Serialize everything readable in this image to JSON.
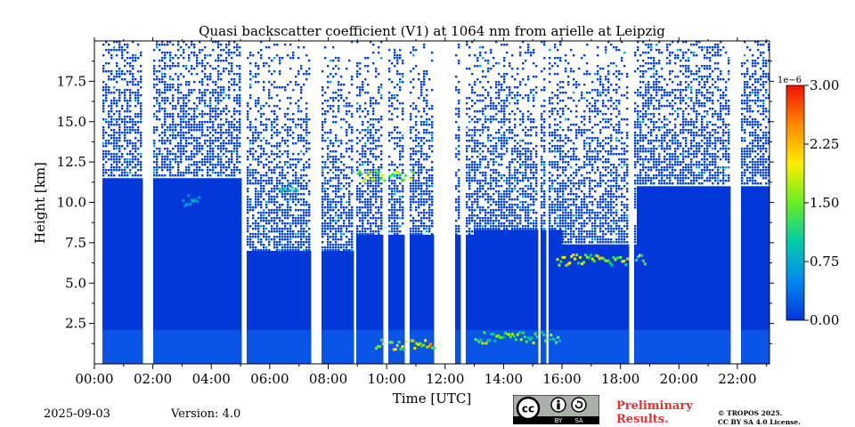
{
  "chart_data": {
    "type": "heatmap",
    "title": "Quasi backscatter coefficient (V1) at 1064 nm from arielle at Leipzig",
    "xlabel": "Time [UTC]",
    "ylabel": "Height [km]",
    "xlim": [
      0,
      23.1
    ],
    "ylim": [
      0,
      20
    ],
    "x_ticks": [
      0,
      2,
      4,
      6,
      8,
      10,
      12,
      14,
      16,
      18,
      20,
      22
    ],
    "x_tick_labels": [
      "00:00",
      "02:00",
      "04:00",
      "06:00",
      "08:00",
      "10:00",
      "12:00",
      "14:00",
      "16:00",
      "18:00",
      "20:00",
      "22:00"
    ],
    "y_ticks": [
      2.5,
      5.0,
      7.5,
      10.0,
      12.5,
      15.0,
      17.5
    ],
    "y_tick_labels": [
      "2.5",
      "5.0",
      "7.5",
      "10.0",
      "12.5",
      "15.0",
      "17.5"
    ],
    "colorbar": {
      "min": 0.0,
      "max": 3.0,
      "multiplier": "1e−6",
      "ticks": [
        0.0,
        0.75,
        1.5,
        2.25,
        3.0
      ],
      "tick_labels": [
        "0.00",
        "0.75",
        "1.50",
        "2.25",
        "3.00"
      ],
      "colors": [
        "#0033dd",
        "#0088ee",
        "#00ccaa",
        "#66ee22",
        "#ffee00",
        "#ff8800",
        "#ee1100"
      ]
    },
    "no_signal_gaps_utc": [
      [
        0.0,
        0.25
      ],
      [
        1.6,
        2.0
      ],
      [
        5.05,
        5.2
      ],
      [
        7.4,
        7.8
      ],
      [
        8.85,
        8.95
      ],
      [
        9.9,
        10.05
      ],
      [
        10.65,
        10.75
      ],
      [
        11.6,
        12.35
      ],
      [
        12.55,
        12.75
      ],
      [
        15.15,
        15.25
      ],
      [
        15.45,
        15.5
      ],
      [
        18.25,
        18.45
      ],
      [
        21.8,
        22.1
      ]
    ],
    "cloud_layers": [
      {
        "t_start": 3.0,
        "t_end": 3.6,
        "height_km": 10.2,
        "level": 0.7
      },
      {
        "t_start": 6.3,
        "t_end": 6.9,
        "height_km": 11.0,
        "level": 1.0
      },
      {
        "t_start": 8.8,
        "t_end": 10.9,
        "height_km": 11.7,
        "level": 1.6
      },
      {
        "t_start": 15.8,
        "t_end": 18.8,
        "height_km": 6.5,
        "level": 1.8
      },
      {
        "t_start": 9.6,
        "t_end": 11.8,
        "height_km": 1.3,
        "level": 2.0
      },
      {
        "t_start": 13.0,
        "t_end": 15.9,
        "height_km": 1.7,
        "level": 1.5
      }
    ]
  },
  "footer": {
    "date": "2025-09-03",
    "version": "Version: 4.0",
    "preliminary_line1": "Preliminary",
    "preliminary_line2": "Results.",
    "copyright_line1": "© TROPOS 2025.",
    "copyright_line2": "CC BY SA 4.0 License.",
    "license_badge": {
      "left": "cc",
      "by": "BY",
      "sa": "SA"
    }
  }
}
